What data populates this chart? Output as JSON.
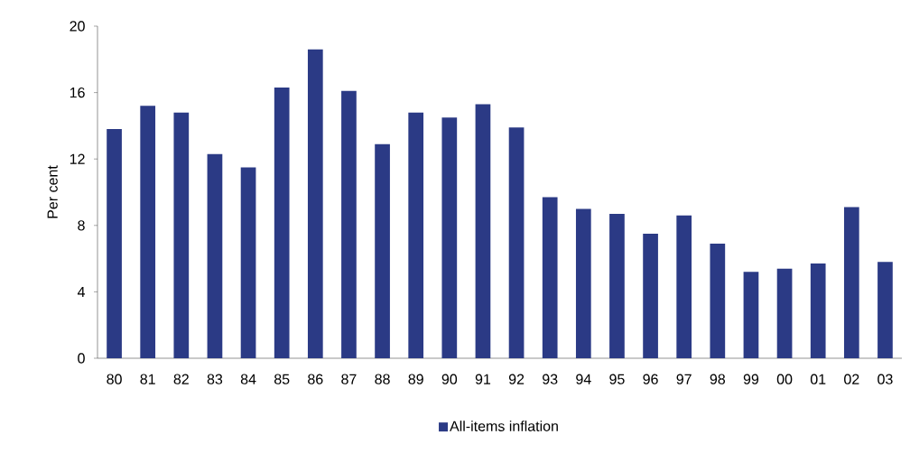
{
  "chart_data": {
    "type": "bar",
    "categories": [
      "80",
      "81",
      "82",
      "83",
      "84",
      "85",
      "86",
      "87",
      "88",
      "89",
      "90",
      "91",
      "92",
      "93",
      "94",
      "95",
      "96",
      "97",
      "98",
      "99",
      "00",
      "01",
      "02",
      "03"
    ],
    "series": [
      {
        "name": "All-items inflation",
        "color": "#2b3a85",
        "values": [
          13.8,
          15.2,
          14.8,
          12.3,
          11.5,
          16.3,
          18.6,
          16.1,
          12.9,
          14.8,
          14.5,
          15.3,
          13.9,
          9.7,
          9.0,
          8.7,
          7.5,
          8.6,
          6.9,
          5.2,
          5.4,
          5.7,
          9.1,
          5.8
        ]
      }
    ],
    "ylabel": "Per cent",
    "ylim": [
      0,
      20
    ],
    "yticks": [
      0,
      4,
      8,
      12,
      16,
      20
    ],
    "legend": "bottom"
  }
}
